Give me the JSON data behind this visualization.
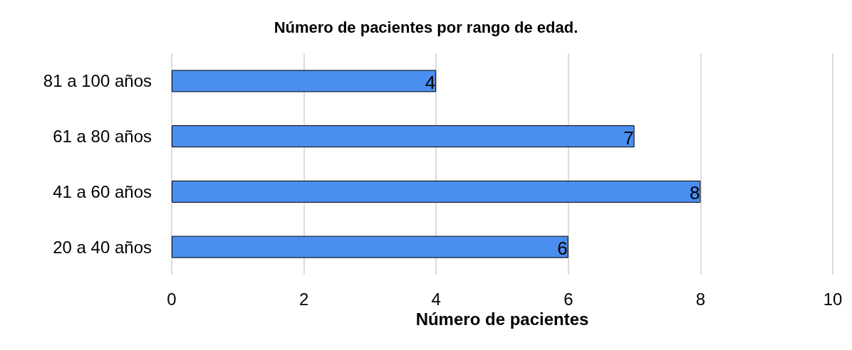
{
  "chart_data": {
    "type": "bar",
    "orientation": "horizontal",
    "title": "Número de pacientes por rango de edad.",
    "xlabel": "Número de pacientes",
    "categories": [
      "81 a 100 años",
      "61 a 80 años",
      "41 a 60 años",
      "20 a 40 años"
    ],
    "values": [
      4,
      7,
      8,
      6
    ],
    "color": "#4a8ef0",
    "data_labels": true,
    "xlim": [
      0,
      10
    ],
    "xticks": [
      0,
      2,
      4,
      6,
      8,
      10
    ],
    "grid": "x"
  }
}
